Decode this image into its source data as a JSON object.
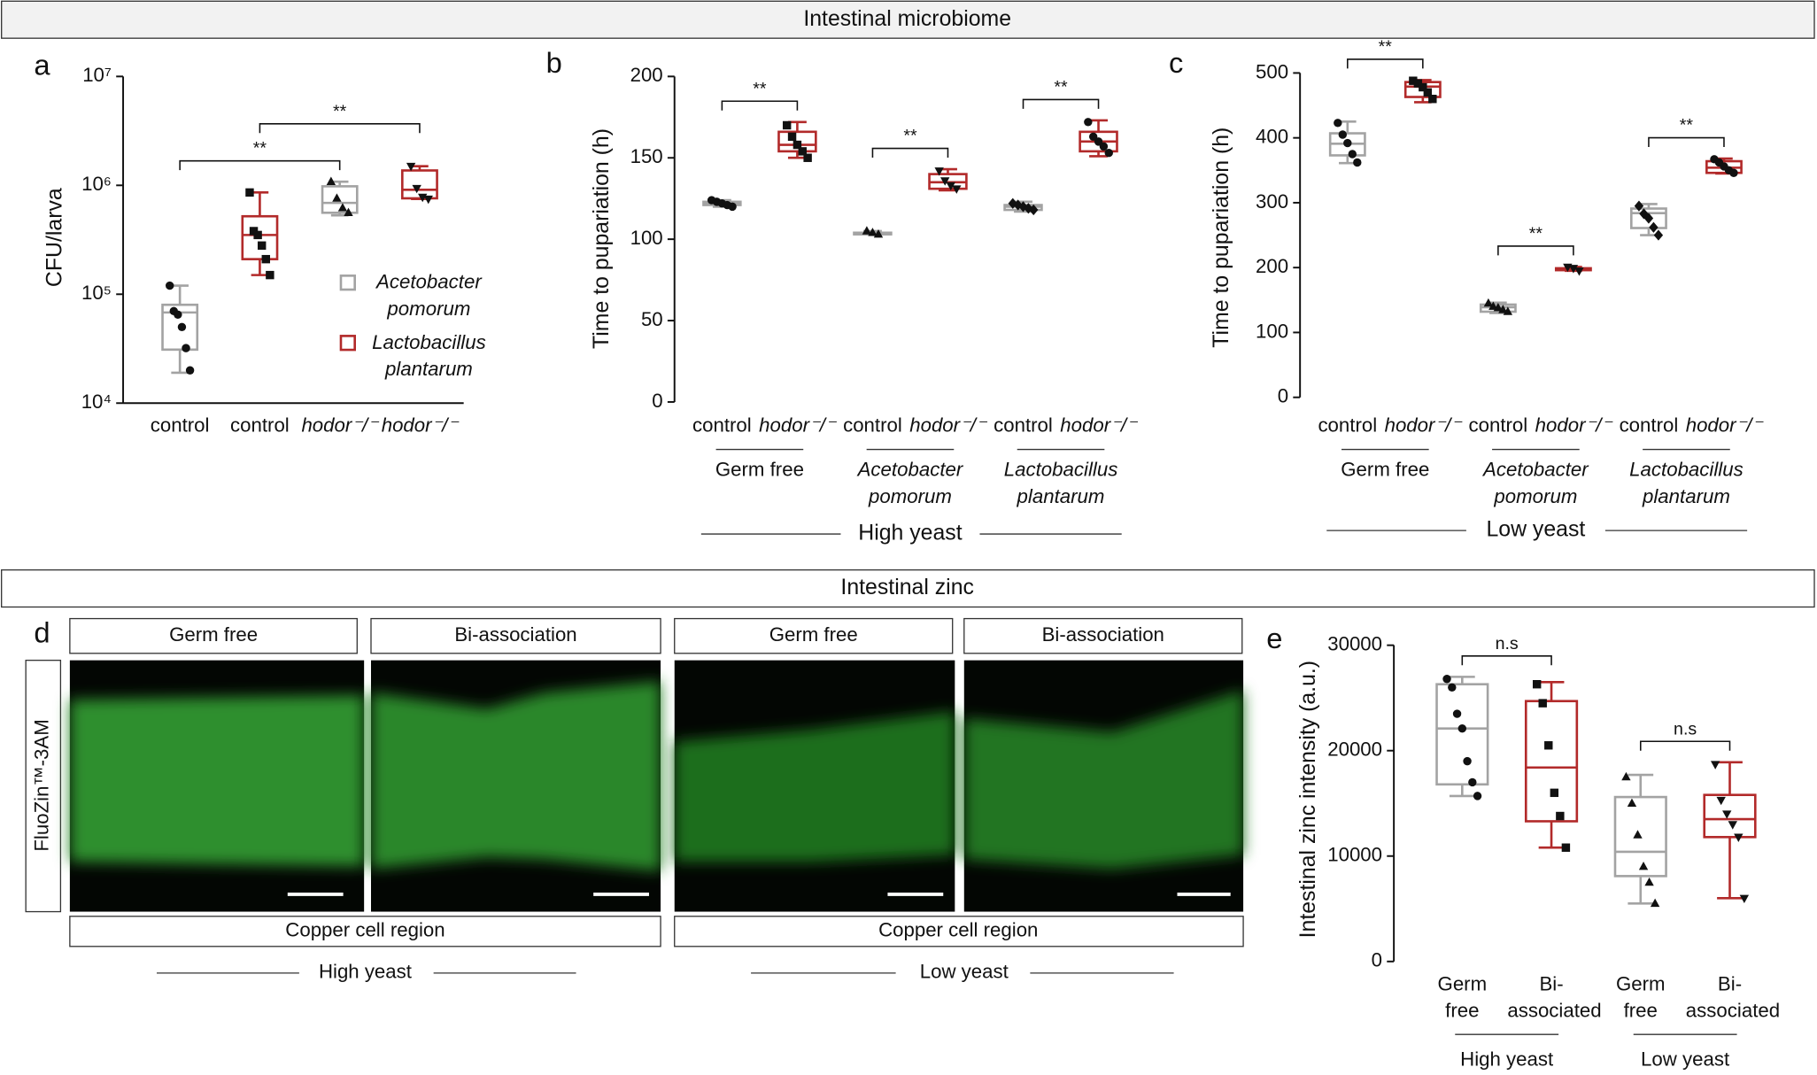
{
  "headers": [
    "Intestinal microbiome",
    "Intestinal zinc"
  ],
  "panel_labels": [
    "a",
    "b",
    "c",
    "d",
    "e"
  ],
  "panel_d": {
    "column_titles": [
      "Germ free",
      "Bi-association",
      "Germ free",
      "Bi-association"
    ],
    "row_label": "FluoZin™-3AM",
    "region_labels": [
      "Copper cell region",
      "Copper cell region"
    ],
    "condition_labels": [
      "High yeast",
      "Low yeast"
    ]
  },
  "chart_data": [
    {
      "type": "box",
      "y_label": "CFU/larva",
      "log": true,
      "ylim": [
        10000,
        10000000
      ],
      "yticks": [
        {
          "value": 10000,
          "label": "10⁴"
        },
        {
          "value": 100000,
          "label": "10⁵"
        },
        {
          "value": 1000000,
          "label": "10⁶"
        },
        {
          "value": 10000000,
          "label": "10⁷"
        }
      ],
      "categories": [
        "control",
        "control",
        "hodor⁻/⁻",
        "hodor⁻/⁻"
      ],
      "boxes": [
        {
          "color": "#a3a3a3",
          "marker": "circle",
          "min": 19000,
          "q1": 31000,
          "median": 68000,
          "q3": 80000,
          "max": 120000,
          "points": [
            120000,
            70000,
            65000,
            50000,
            32000,
            20000
          ]
        },
        {
          "color": "#b22a2a",
          "marker": "square",
          "min": 150000,
          "q1": 210000,
          "median": 350000,
          "q3": 520000,
          "max": 860000,
          "points": [
            860000,
            380000,
            350000,
            280000,
            210000,
            150000
          ]
        },
        {
          "color": "#a3a3a3",
          "marker": "triangle",
          "min": 530000,
          "q1": 560000,
          "median": 690000,
          "q3": 980000,
          "max": 1080000,
          "points": [
            1080000,
            760000,
            620000,
            560000
          ]
        },
        {
          "color": "#b22a2a",
          "marker": "triangle-down",
          "min": 750000,
          "q1": 760000,
          "median": 910000,
          "q3": 1370000,
          "max": 1500000,
          "points": [
            1500000,
            940000,
            780000,
            750000
          ]
        }
      ],
      "legend": [
        {
          "name": "Acetobacter pomorum",
          "color": "#a3a3a3"
        },
        {
          "name": "Lactobacillus plantarum",
          "color": "#b22a2a"
        }
      ],
      "annotations": [
        {
          "text": "**",
          "between": [
            0,
            2
          ]
        },
        {
          "text": "**",
          "between": [
            1,
            3
          ]
        }
      ]
    },
    {
      "type": "box",
      "y_label": "Time to pupariation (h)",
      "ylim": [
        0,
        200
      ],
      "yticks": [
        0,
        50,
        100,
        150,
        200
      ],
      "categories": [
        "control",
        "hodor⁻/⁻",
        "control",
        "hodor⁻/⁻",
        "control",
        "hodor⁻/⁻"
      ],
      "groups": [
        "Germ free",
        "Acetobacter pomorum",
        "Lactobacillus plantarum"
      ],
      "supergroup": "High yeast",
      "boxes": [
        {
          "color": "#a3a3a3",
          "marker": "circle",
          "min": 120,
          "q1": 121,
          "median": 122,
          "q3": 123,
          "max": 124,
          "points": [
            124,
            123,
            122,
            121,
            120
          ]
        },
        {
          "color": "#b22a2a",
          "marker": "square",
          "min": 150,
          "q1": 154,
          "median": 158,
          "q3": 166,
          "max": 172,
          "points": [
            170,
            163,
            158,
            154,
            150
          ]
        },
        {
          "color": "#a3a3a3",
          "marker": "triangle",
          "min": 103,
          "q1": 103,
          "median": 104,
          "q3": 104,
          "max": 105,
          "points": [
            105,
            104,
            103
          ]
        },
        {
          "color": "#b22a2a",
          "marker": "triangle-down",
          "min": 130,
          "q1": 131,
          "median": 135,
          "q3": 140,
          "max": 143,
          "points": [
            142,
            136,
            133,
            131
          ]
        },
        {
          "color": "#a3a3a3",
          "marker": "diamond",
          "min": 117,
          "q1": 118,
          "median": 120,
          "q3": 121,
          "max": 123,
          "points": [
            122,
            121,
            120,
            119,
            118
          ]
        },
        {
          "color": "#b22a2a",
          "marker": "circle",
          "min": 151,
          "q1": 154,
          "median": 160,
          "q3": 166,
          "max": 173,
          "points": [
            172,
            163,
            160,
            157,
            153
          ]
        }
      ],
      "annotations": [
        {
          "text": "**",
          "between": [
            0,
            1
          ]
        },
        {
          "text": "**",
          "between": [
            2,
            3
          ]
        },
        {
          "text": "**",
          "between": [
            4,
            5
          ]
        }
      ]
    },
    {
      "type": "box",
      "y_label": "Time to pupariation (h)",
      "ylim": [
        0,
        500
      ],
      "yticks": [
        0,
        100,
        200,
        300,
        400,
        500
      ],
      "categories": [
        "control",
        "hodor⁻/⁻",
        "control",
        "hodor⁻/⁻",
        "control",
        "hodor⁻/⁻"
      ],
      "groups": [
        "Germ free",
        "Acetobacter pomorum",
        "Lactobacillus plantarum"
      ],
      "supergroup": "Low yeast",
      "boxes": [
        {
          "color": "#a3a3a3",
          "marker": "circle",
          "min": 361,
          "q1": 373,
          "median": 391,
          "q3": 407,
          "max": 425,
          "points": [
            423,
            405,
            392,
            375,
            362
          ]
        },
        {
          "color": "#b22a2a",
          "marker": "square",
          "min": 455,
          "q1": 463,
          "median": 479,
          "q3": 486,
          "max": 489,
          "points": [
            488,
            484,
            478,
            470,
            460
          ]
        },
        {
          "color": "#a3a3a3",
          "marker": "triangle",
          "min": 130,
          "q1": 132,
          "median": 139,
          "q3": 143,
          "max": 146,
          "points": [
            145,
            140,
            138,
            135,
            132
          ]
        },
        {
          "color": "#b22a2a",
          "marker": "triangle-down",
          "min": 195,
          "q1": 196,
          "median": 198,
          "q3": 199,
          "max": 201,
          "points": [
            201,
            199,
            195
          ]
        },
        {
          "color": "#a3a3a3",
          "marker": "diamond",
          "min": 250,
          "q1": 261,
          "median": 284,
          "q3": 291,
          "max": 298,
          "points": [
            295,
            283,
            276,
            262,
            250
          ]
        },
        {
          "color": "#b22a2a",
          "marker": "circle",
          "min": 345,
          "q1": 346,
          "median": 354,
          "q3": 364,
          "max": 368,
          "points": [
            367,
            362,
            356,
            350,
            346
          ]
        }
      ],
      "annotations": [
        {
          "text": "**",
          "between": [
            0,
            1
          ]
        },
        {
          "text": "**",
          "between": [
            2,
            3
          ]
        },
        {
          "text": "**",
          "between": [
            4,
            5
          ]
        }
      ]
    },
    {
      "type": "box",
      "y_label": "Intestinal zinc intensity (a.u.)",
      "ylim": [
        0,
        30000
      ],
      "yticks": [
        0,
        10000,
        20000,
        30000
      ],
      "categories": [
        "Germ free",
        "Bi-associated",
        "Germ free",
        "Bi-associated"
      ],
      "groups": [
        "High yeast",
        "Low yeast"
      ],
      "boxes": [
        {
          "color": "#a3a3a3",
          "marker": "circle",
          "min": 15700,
          "q1": 16800,
          "median": 22100,
          "q3": 26300,
          "max": 27000,
          "points": [
            26800,
            26000,
            23500,
            22100,
            19000,
            17000,
            15700
          ]
        },
        {
          "color": "#b22a2a",
          "marker": "square",
          "min": 10800,
          "q1": 13300,
          "median": 18400,
          "q3": 24700,
          "max": 26500,
          "points": [
            26300,
            24500,
            20500,
            16000,
            13800,
            10800
          ]
        },
        {
          "color": "#a3a3a3",
          "marker": "triangle",
          "min": 5500,
          "q1": 8100,
          "median": 10400,
          "q3": 15600,
          "max": 17700,
          "points": [
            17500,
            15000,
            12000,
            9000,
            7500,
            5500
          ]
        },
        {
          "color": "#b22a2a",
          "marker": "triangle-down",
          "min": 6000,
          "q1": 11800,
          "median": 13500,
          "q3": 15800,
          "max": 18900,
          "points": [
            18700,
            15300,
            14000,
            13000,
            11800,
            6000
          ]
        }
      ],
      "annotations": [
        {
          "text": "n.s",
          "between": [
            0,
            1
          ]
        },
        {
          "text": "n.s",
          "between": [
            2,
            3
          ]
        }
      ]
    }
  ]
}
